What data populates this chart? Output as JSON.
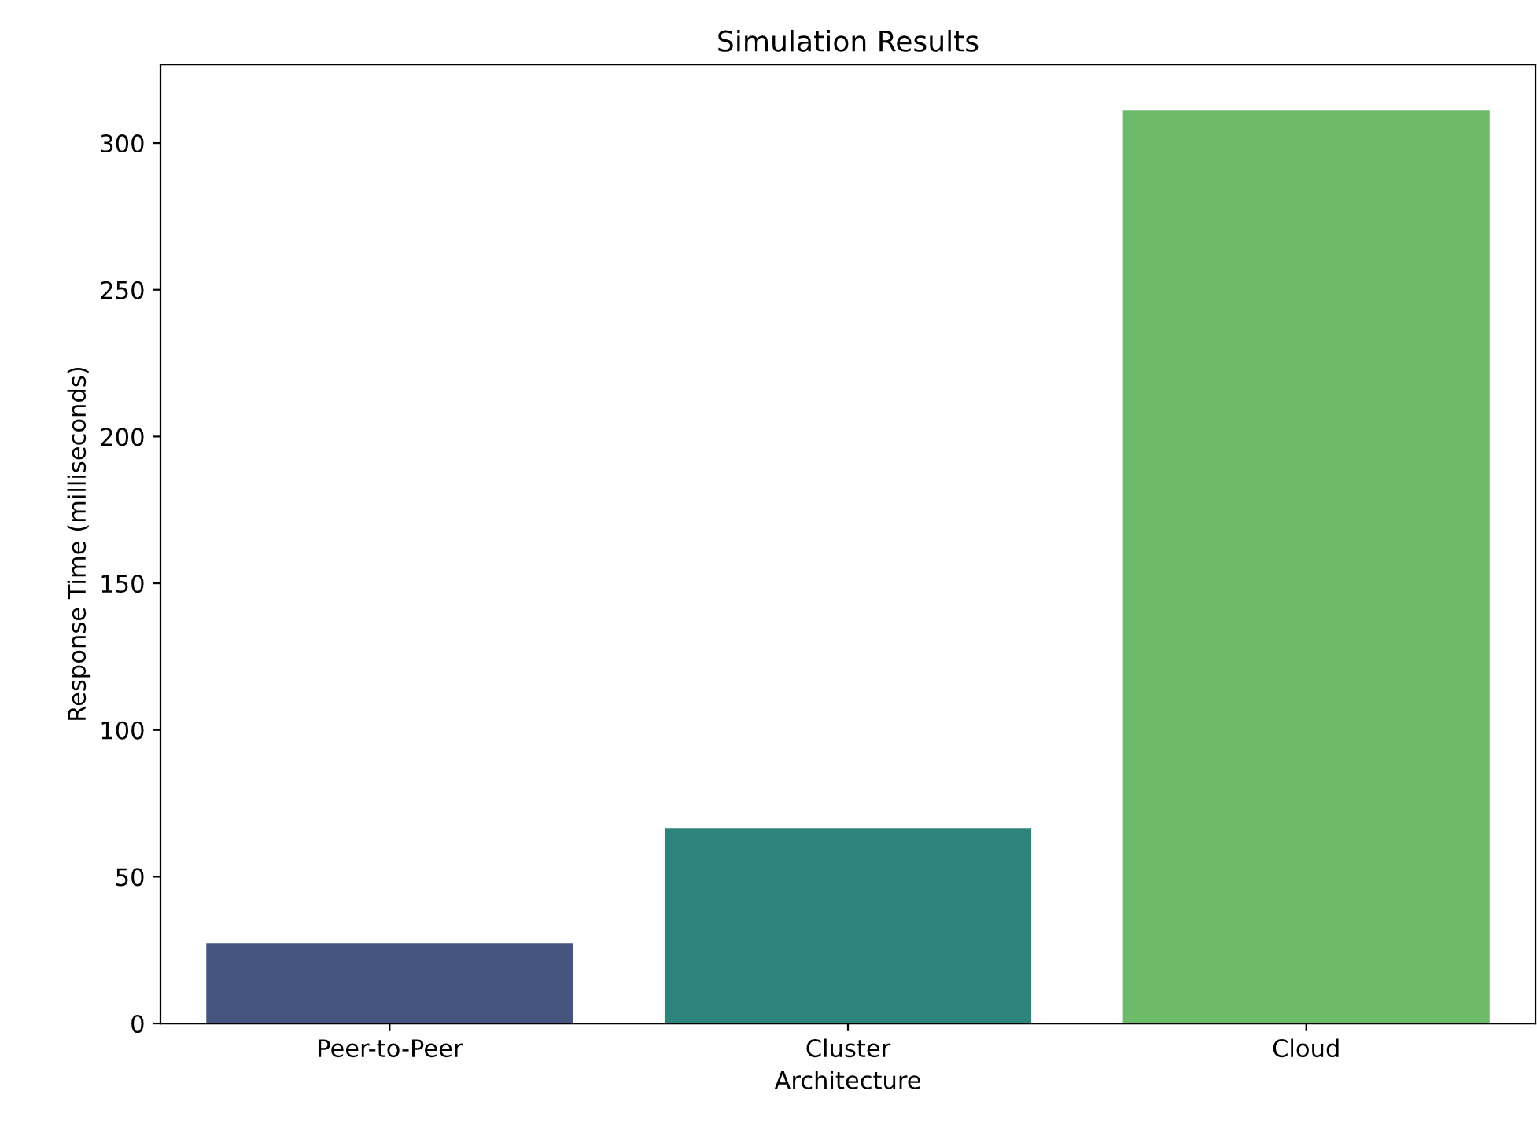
{
  "chart_data": {
    "type": "bar",
    "title": "Simulation Results",
    "xlabel": "Architecture",
    "ylabel": "Response Time (milliseconds)",
    "categories": [
      "Peer-to-Peer",
      "Cluster",
      "Cloud"
    ],
    "values": [
      27.3,
      66.4,
      311.2
    ],
    "colors": [
      "#46557f",
      "#2e837c",
      "#6cbb6b"
    ],
    "ylim": [
      0,
      326.8
    ],
    "yticks": [
      0,
      50,
      100,
      150,
      200,
      250,
      300
    ],
    "grid": false
  }
}
